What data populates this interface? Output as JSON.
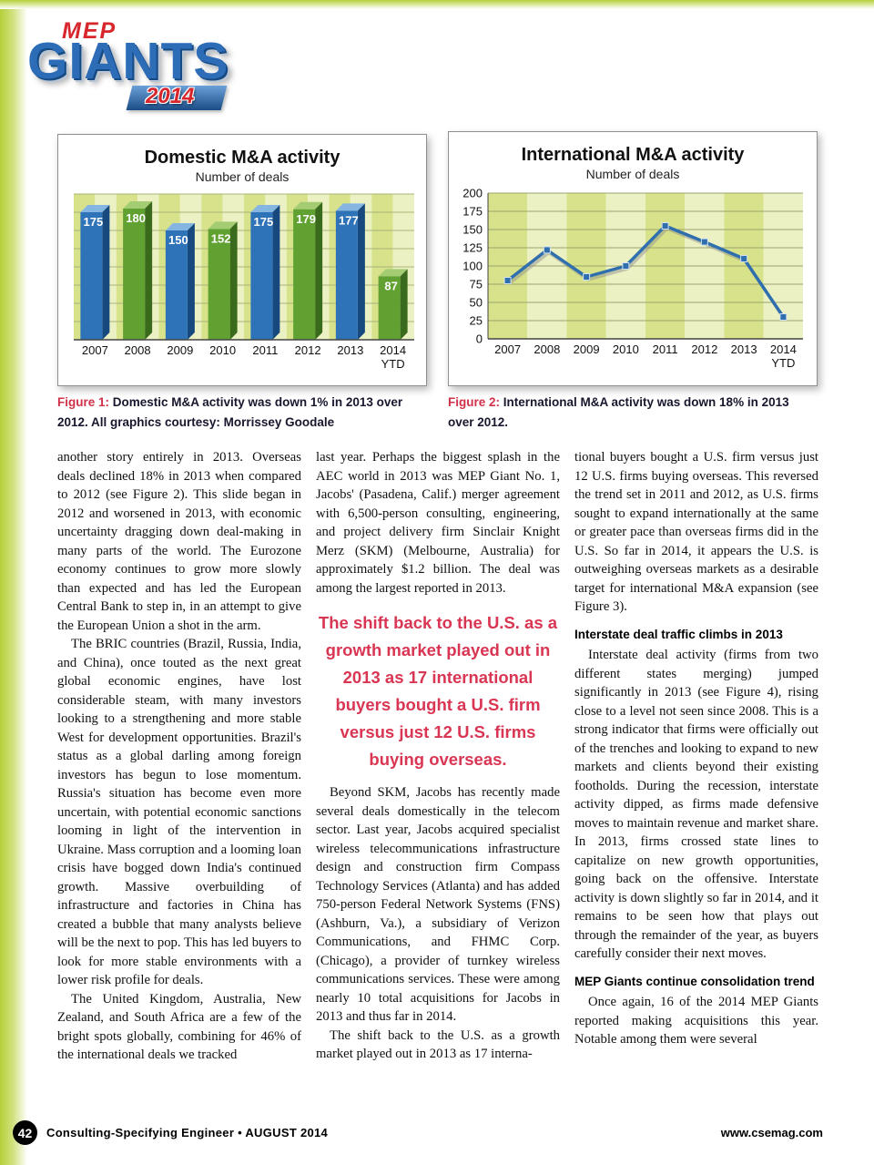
{
  "logo": {
    "mep": "MEP",
    "giants": "GIANTS",
    "year": "2014"
  },
  "chart_data": [
    {
      "type": "bar",
      "title": "Domestic M&A activity",
      "subtitle": "Number of deals",
      "categories": [
        "2007",
        "2008",
        "2009",
        "2010",
        "2011",
        "2012",
        "2013",
        "2014\nYTD"
      ],
      "values": [
        175,
        180,
        150,
        152,
        175,
        179,
        177,
        87
      ],
      "ylim": [
        0,
        200
      ],
      "grid": true,
      "legend": "none",
      "stripe_dark": "#d8e28a",
      "stripe_light": "#ecf1c4",
      "bar_colors": [
        {
          "front": "#2e72b8",
          "top": "#85b6e2",
          "side": "#17497e"
        },
        {
          "front": "#61a132",
          "top": "#a4cc73",
          "side": "#3a6a1b"
        }
      ]
    },
    {
      "type": "line",
      "title": "International M&A activity",
      "subtitle": "Number of deals",
      "categories": [
        "2007",
        "2008",
        "2009",
        "2010",
        "2011",
        "2012",
        "2013",
        "2014\nYTD"
      ],
      "values": [
        80,
        122,
        85,
        100,
        155,
        133,
        110,
        30
      ],
      "ylim": [
        0,
        200
      ],
      "yticks": [
        0,
        25,
        50,
        75,
        100,
        125,
        150,
        175,
        200
      ],
      "grid": true,
      "legend": "none",
      "stripe_dark": "#d8e28a",
      "stripe_light": "#ecf1c4",
      "line_color": "#2f6fae"
    }
  ],
  "figure1": {
    "caption_label": "Figure 1:",
    "caption_text": " Domestic M&A activity was down 1% in 2013 over 2012. All graphics courtesy: Morrissey Goodale"
  },
  "figure2": {
    "caption_label": "Figure 2:",
    "caption_text": " International M&A activity was down 18% in 2013 over 2012."
  },
  "article": {
    "col1_p1": "another story entirely in 2013. Overseas deals declined 18% in 2013 when compared to 2012 (see Figure 2). This slide began in 2012 and worsened in 2013, with economic uncertainty dragging down deal-making in many parts of the world. The Eurozone economy continues to grow more slowly than expected and has led the European Central Bank to step in, in an attempt to give the European Union a shot in the arm.",
    "col1_p2": "The BRIC countries (Brazil, Russia, India, and China), once touted as the next great global economic engines, have lost considerable steam, with many investors looking to a strengthening and more stable West for development opportunities. Brazil's status as a global darling among foreign investors has begun to lose momentum. Russia's situation has become even more uncertain, with potential economic sanctions looming in light of the intervention in Ukraine. Mass corruption and a looming loan crisis have bogged down India's continued growth. Massive overbuilding of infrastructure and factories in China has created a bubble that many analysts believe will be the next to pop. This has led buyers to look for more stable environments with a lower risk profile for deals.",
    "col1_p3": "The United Kingdom, Australia, New Zealand, and South Africa are a few of the bright spots globally, combining for 46% of the international deals we tracked",
    "col2_p1": "last year. Perhaps the biggest splash in the AEC world in 2013 was MEP Giant No. 1, Jacobs' (Pasadena, Calif.) merger agreement with 6,500-person consulting, engineering, and project delivery firm Sinclair Knight Merz (SKM) (Melbourne, Australia) for approximately $1.2 billion. The deal was among the largest reported in 2013.",
    "pullquote": "The shift back to the U.S. as a growth market played out in 2013 as 17 international buyers bought a U.S. firm versus just 12 U.S. firms buying overseas.",
    "col2_p2": "Beyond SKM, Jacobs has recently made several deals domestically in the telecom sector. Last year, Jacobs acquired specialist wireless telecommunications infrastructure design and construction firm Compass Technology Services (Atlanta) and has added 750-person Federal Network Systems (FNS) (Ashburn, Va.), a subsidiary of Verizon Communications, and FHMC Corp. (Chicago), a provider of turnkey wireless communications services. These were among nearly 10 total acquisitions for Jacobs in 2013 and thus far in 2014.",
    "col2_p3": "The shift back to the U.S. as a growth market played out in 2013 as 17 interna-",
    "col3_p1": "tional buyers bought a U.S. firm versus just 12 U.S. firms buying overseas. This reversed the trend set in 2011 and 2012, as U.S. firms sought to expand internationally at the same or greater pace than overseas firms did in the U.S. So far in 2014, it appears the U.S. is outweighing overseas markets as a desirable target for international M&A expansion (see Figure 3).",
    "col3_h1": "Interstate deal traffic climbs in 2013",
    "col3_p2": "Interstate deal activity (firms from two different states merging) jumped significantly in 2013 (see Figure 4), rising close to a level not seen since 2008. This is a strong indicator that firms were officially out of the trenches and looking to expand to new markets and clients beyond their existing footholds. During the recession, interstate activity dipped, as firms made defensive moves to maintain revenue and market share. In 2013, firms crossed state lines to capitalize on new growth opportunities, going back on the offensive. Interstate activity is down slightly so far in 2014, and it remains to be seen how that plays out through the remainder of the year, as buyers carefully consider their next moves.",
    "col3_h2": "MEP Giants continue consolidation trend",
    "col3_p3": "Once again, 16 of the 2014 MEP Giants reported making acquisitions this year. Notable among them were several"
  },
  "footer": {
    "page": "42",
    "left": "Consulting-Specifying Engineer • AUGUST 2014",
    "right": "www.csemag.com"
  }
}
